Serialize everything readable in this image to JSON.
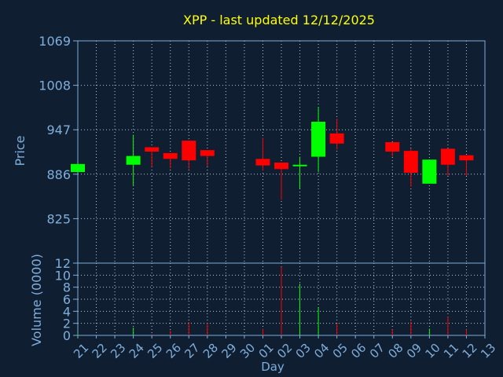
{
  "chart_data": {
    "type": "candlestick",
    "title": "XPP - last updated 12/12/2025",
    "xlabel": "Day",
    "price_panel": {
      "ylabel": "Price",
      "ylim": [
        764,
        1069
      ],
      "yticks": [
        "1069",
        "1008",
        "947",
        "886",
        "825"
      ],
      "ytick_values": [
        1069,
        1008,
        947,
        886,
        825
      ]
    },
    "volume_panel": {
      "ylabel": "Volume (0000)",
      "ylim": [
        0,
        12
      ],
      "yticks": [
        "12",
        "10",
        "8",
        "6",
        "4",
        "2",
        "0"
      ],
      "ytick_values": [
        12,
        10,
        8,
        6,
        4,
        2,
        0
      ]
    },
    "x_labels": [
      "21",
      "22",
      "23",
      "24",
      "25",
      "26",
      "27",
      "28",
      "29",
      "30",
      "01",
      "02",
      "03",
      "04",
      "05",
      "06",
      "07",
      "08",
      "09",
      "10",
      "11",
      "12",
      "13"
    ],
    "candles": [
      {
        "x": 0,
        "open": 889,
        "high": 900,
        "low": 889,
        "close": 900,
        "volume": 0.3
      },
      {
        "x": 3,
        "open": 899,
        "high": 940,
        "low": 870,
        "close": 911,
        "volume": 1.3
      },
      {
        "x": 4,
        "open": 923,
        "high": 923,
        "low": 896,
        "close": 917,
        "volume": 0.2
      },
      {
        "x": 5,
        "open": 915,
        "high": 915,
        "low": 894,
        "close": 907,
        "volume": 0.8
      },
      {
        "x": 6,
        "open": 932,
        "high": 932,
        "low": 893,
        "close": 905,
        "volume": 2.2
      },
      {
        "x": 7,
        "open": 919,
        "high": 919,
        "low": 897,
        "close": 911,
        "volume": 2.0
      },
      {
        "x": 10,
        "open": 907,
        "high": 936,
        "low": 891,
        "close": 898,
        "volume": 1.1
      },
      {
        "x": 11,
        "open": 902,
        "high": 902,
        "low": 851,
        "close": 893,
        "volume": 11.4
      },
      {
        "x": 12,
        "open": 899,
        "high": 910,
        "low": 866,
        "close": 899,
        "volume": 8.6
      },
      {
        "x": 13,
        "open": 910,
        "high": 978,
        "low": 889,
        "close": 958,
        "volume": 4.6
      },
      {
        "x": 14,
        "open": 942,
        "high": 962,
        "low": 920,
        "close": 928,
        "volume": 2.0
      },
      {
        "x": 17,
        "open": 930,
        "high": 930,
        "low": 910,
        "close": 917,
        "volume": 1.0
      },
      {
        "x": 18,
        "open": 918,
        "high": 921,
        "low": 869,
        "close": 888,
        "volume": 2.3
      },
      {
        "x": 19,
        "open": 873,
        "high": 906,
        "low": 873,
        "close": 906,
        "volume": 1.1
      },
      {
        "x": 20,
        "open": 921,
        "high": 921,
        "low": 884,
        "close": 899,
        "volume": 3.1
      },
      {
        "x": 21,
        "open": 912,
        "high": 912,
        "low": 884,
        "close": 905,
        "volume": 1.0
      }
    ],
    "colors": {
      "background": "#0f1e30",
      "axis": "#7faedc",
      "grid": "#b8c8d8",
      "title": "#ffff00",
      "up": "#00ff00",
      "down": "#ff0000"
    },
    "grid": true
  }
}
